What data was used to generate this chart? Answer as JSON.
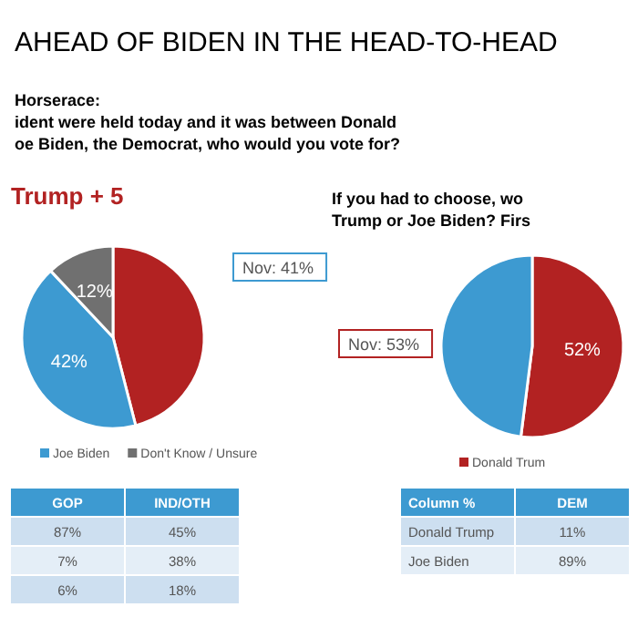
{
  "chart_data": [
    {
      "type": "pie",
      "title": "AHEAD OF BIDEN IN THE HEAD-TO-HEAD",
      "subtitle": "Horserace:\nident were held today and it was between Donald\noe Biden, the Democrat, who would you vote for?",
      "categories": [
        null,
        "Joe Biden",
        "Don't Know / Unsure"
      ],
      "values": [
        46,
        42,
        12
      ],
      "colors": [
        "#b22222",
        "#3d9ad1",
        "#707070"
      ],
      "value_labels": [
        null,
        "42%",
        "12%"
      ],
      "legend": "bottom",
      "annotations": [
        "Trump + 5",
        "Nov: 41%",
        "GOP",
        "IND/OTH",
        "87%",
        "45%",
        "7%",
        "38%",
        "6%",
        "18%"
      ]
    },
    {
      "type": "pie",
      "title": "If you had to choose, wo\nTrump or Joe Biden? Firs",
      "categories": [
        "Donald Trum",
        null
      ],
      "values": [
        52,
        48
      ],
      "colors": [
        "#b22222",
        "#3d9ad1"
      ],
      "value_labels": [
        "52%",
        null
      ],
      "legend": "bottom",
      "annotations": [
        "Nov: 53%",
        "Column %",
        "DEM",
        "Donald Trump",
        "11%",
        "Joe Biden",
        "89%"
      ]
    }
  ]
}
